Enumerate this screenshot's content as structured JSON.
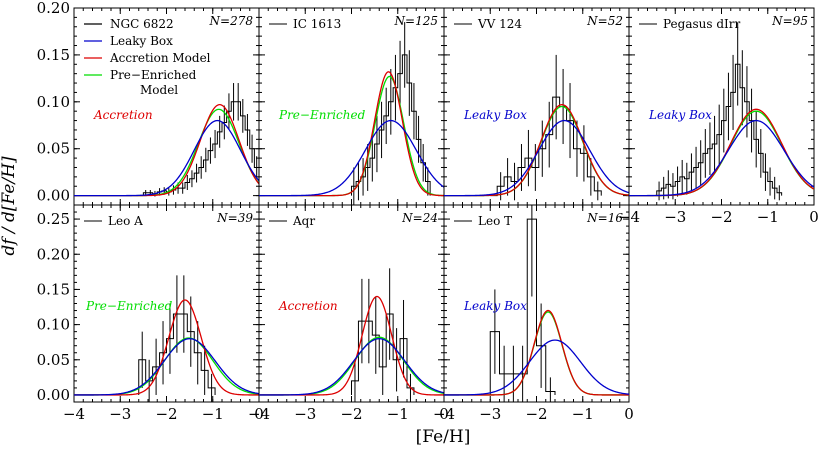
{
  "chart_data": {
    "type": "line",
    "description_free": true,
    "xlabel": "[Fe/H]",
    "ylabel": "df / d[Fe/H]",
    "xlim": [
      -4,
      0
    ],
    "ylim_top": [
      -0.01,
      0.2
    ],
    "ylim_bottom": [
      -0.01,
      0.27
    ],
    "x_ticks": [
      -4,
      -3,
      -2,
      -1,
      0
    ],
    "y_ticks_top": [
      0.0,
      0.05,
      0.1,
      0.15,
      0.2
    ],
    "y_ticks_bottom": [
      0.0,
      0.05,
      0.1,
      0.15,
      0.2,
      0.25
    ],
    "x_tick_labels": [
      "−4",
      "−3",
      "−2",
      "−1",
      "0"
    ],
    "y_tick_labels_top": [
      "0.00",
      "0.05",
      "0.10",
      "0.15",
      "0.20"
    ],
    "y_tick_labels_bottom": [
      "0.00",
      "0.05",
      "0.10",
      "0.15",
      "0.20",
      "0.25"
    ],
    "colors": {
      "data": "#000000",
      "leaky_box": "#0000cc",
      "accretion": "#dd0000",
      "pre_enriched": "#00dd00"
    },
    "legend": [
      {
        "label": "NGC 6822",
        "color": "#000000"
      },
      {
        "label": "Leaky Box",
        "color": "#0000cc"
      },
      {
        "label": "Accretion Model",
        "color": "#dd0000"
      },
      {
        "label": "Pre−Enriched",
        "label2": "Model",
        "color": "#00dd00"
      }
    ],
    "panels": [
      {
        "name": "NGC 6822",
        "n": "N=278",
        "row": 0,
        "col": 0,
        "best_model": "Accretion",
        "best_color": "#dd0000",
        "curves": {
          "leaky": {
            "mu": -0.9,
            "sigma": 0.5,
            "peak": 0.08
          },
          "accretion": {
            "mu": -0.85,
            "sigma": 0.42,
            "peak": 0.097
          },
          "pre": {
            "mu": -0.87,
            "sigma": 0.44,
            "peak": 0.092
          }
        },
        "hist": {
          "x0": -2.5,
          "bin": 0.1,
          "values": [
            0.003,
            0.003,
            0.002,
            0.004,
            0.005,
            0.004,
            0.006,
            0.008,
            0.008,
            0.014,
            0.018,
            0.024,
            0.03,
            0.038,
            0.048,
            0.055,
            0.068,
            0.078,
            0.09,
            0.1,
            0.1,
            0.085,
            0.07,
            0.05,
            0.03,
            0.018,
            0.008,
            0.004
          ],
          "errors": [
            0.003,
            0.003,
            0.003,
            0.004,
            0.004,
            0.004,
            0.005,
            0.006,
            0.006,
            0.008,
            0.009,
            0.01,
            0.012,
            0.013,
            0.014,
            0.015,
            0.017,
            0.018,
            0.019,
            0.02,
            0.02,
            0.018,
            0.017,
            0.015,
            0.012,
            0.009,
            0.007,
            0.005
          ]
        }
      },
      {
        "name": "IC 1613",
        "n": "N=125",
        "row": 0,
        "col": 1,
        "best_model": "Pre−Enriched",
        "best_color": "#00dd00",
        "curves": {
          "leaky": {
            "mu": -1.15,
            "sigma": 0.55,
            "peak": 0.08
          },
          "accretion": {
            "mu": -1.2,
            "sigma": 0.3,
            "peak": 0.132
          },
          "pre": {
            "mu": -1.18,
            "sigma": 0.31,
            "peak": 0.127
          }
        },
        "hist": {
          "x0": -2.0,
          "bin": 0.1,
          "values": [
            0.01,
            0.015,
            0.02,
            0.03,
            0.04,
            0.055,
            0.07,
            0.085,
            0.1,
            0.115,
            0.13,
            0.15,
            0.12,
            0.09,
            0.06,
            0.035,
            0.015
          ],
          "errors": [
            0.02,
            0.02,
            0.02,
            0.025,
            0.025,
            0.03,
            0.03,
            0.03,
            0.035,
            0.035,
            0.035,
            0.035,
            0.035,
            0.03,
            0.025,
            0.02,
            0.015
          ]
        }
      },
      {
        "name": "VV 124",
        "n": "N=52",
        "row": 0,
        "col": 2,
        "best_model": "Leaky Box",
        "best_color": "#0000cc",
        "curves": {
          "leaky": {
            "mu": -1.4,
            "sigma": 0.55,
            "peak": 0.08
          },
          "accretion": {
            "mu": -1.45,
            "sigma": 0.45,
            "peak": 0.097
          },
          "pre": {
            "mu": -1.45,
            "sigma": 0.45,
            "peak": 0.095
          }
        },
        "hist": {
          "x0": -3.0,
          "bin": 0.15,
          "values": [
            0.0,
            0.01,
            0.02,
            0.015,
            0.03,
            0.04,
            0.03,
            0.05,
            0.065,
            0.105,
            0.095,
            0.08,
            0.05,
            0.045,
            0.02,
            0.005
          ],
          "errors": [
            0.0,
            0.015,
            0.02,
            0.02,
            0.025,
            0.03,
            0.025,
            0.03,
            0.035,
            0.045,
            0.04,
            0.04,
            0.03,
            0.03,
            0.02,
            0.01
          ]
        }
      },
      {
        "name": "Pegasus dIrr",
        "n": "N=95",
        "row": 0,
        "col": 3,
        "best_model": "Leaky Box",
        "best_color": "#0000cc",
        "curves": {
          "leaky": {
            "mu": -1.25,
            "sigma": 0.6,
            "peak": 0.08
          },
          "accretion": {
            "mu": -1.25,
            "sigma": 0.55,
            "peak": 0.092
          },
          "pre": {
            "mu": -1.25,
            "sigma": 0.55,
            "peak": 0.09
          }
        },
        "hist": {
          "x0": -3.4,
          "bin": 0.1,
          "values": [
            0.005,
            0.008,
            0.012,
            0.01,
            0.015,
            0.02,
            0.018,
            0.025,
            0.03,
            0.035,
            0.045,
            0.05,
            0.055,
            0.065,
            0.08,
            0.095,
            0.11,
            0.14,
            0.115,
            0.1,
            0.08,
            0.06,
            0.045,
            0.025,
            0.015,
            0.008,
            0.003
          ],
          "errors": [
            0.01,
            0.012,
            0.015,
            0.014,
            0.016,
            0.018,
            0.017,
            0.02,
            0.022,
            0.024,
            0.026,
            0.028,
            0.03,
            0.032,
            0.034,
            0.036,
            0.04,
            0.044,
            0.04,
            0.038,
            0.034,
            0.03,
            0.026,
            0.02,
            0.015,
            0.012,
            0.008
          ]
        }
      },
      {
        "name": "Leo A",
        "n": "N=39",
        "row": 1,
        "col": 0,
        "best_model": "Pre−Enriched",
        "best_color": "#00dd00",
        "curves": {
          "leaky": {
            "mu": -1.5,
            "sigma": 0.55,
            "peak": 0.08
          },
          "accretion": {
            "mu": -1.6,
            "sigma": 0.35,
            "peak": 0.135
          },
          "pre": {
            "mu": -1.52,
            "sigma": 0.52,
            "peak": 0.081
          }
        },
        "hist": {
          "x0": -2.6,
          "bin": 0.15,
          "values": [
            0.05,
            0.02,
            0.04,
            0.06,
            0.08,
            0.115,
            0.115,
            0.09,
            0.06,
            0.035,
            0.01
          ],
          "errors": [
            0.04,
            0.03,
            0.04,
            0.045,
            0.05,
            0.055,
            0.055,
            0.05,
            0.045,
            0.035,
            0.02
          ]
        }
      },
      {
        "name": "Aqr",
        "n": "N=24",
        "row": 1,
        "col": 1,
        "best_model": "Accretion",
        "best_color": "#dd0000",
        "curves": {
          "leaky": {
            "mu": -1.4,
            "sigma": 0.55,
            "peak": 0.08
          },
          "accretion": {
            "mu": -1.45,
            "sigma": 0.32,
            "peak": 0.14
          },
          "pre": {
            "mu": -1.4,
            "sigma": 0.52,
            "peak": 0.082
          }
        },
        "hist": {
          "x0": -2.0,
          "bin": 0.15,
          "values": [
            0.02,
            0.105,
            0.105,
            0.085,
            0.04,
            0.115,
            0.05,
            0.08,
            0.01
          ],
          "errors": [
            0.03,
            0.06,
            0.06,
            0.055,
            0.04,
            0.065,
            0.045,
            0.055,
            0.02
          ]
        }
      },
      {
        "name": "Leo T",
        "n": "N=16",
        "row": 1,
        "col": 2,
        "best_model": "Leaky Box",
        "best_color": "#0000cc",
        "curves": {
          "leaky": {
            "mu": -1.6,
            "sigma": 0.55,
            "peak": 0.078
          },
          "accretion": {
            "mu": -1.75,
            "sigma": 0.3,
            "peak": 0.12
          },
          "pre": {
            "mu": -1.75,
            "sigma": 0.3,
            "peak": 0.118
          }
        },
        "hist": {
          "x0": -3.0,
          "bin": 0.2,
          "values": [
            0.09,
            0.03,
            0.03,
            0.03,
            0.25,
            0.07,
            0.005
          ],
          "errors": [
            0.06,
            0.04,
            0.04,
            0.04,
            0.11,
            0.06,
            0.02
          ]
        }
      }
    ]
  }
}
